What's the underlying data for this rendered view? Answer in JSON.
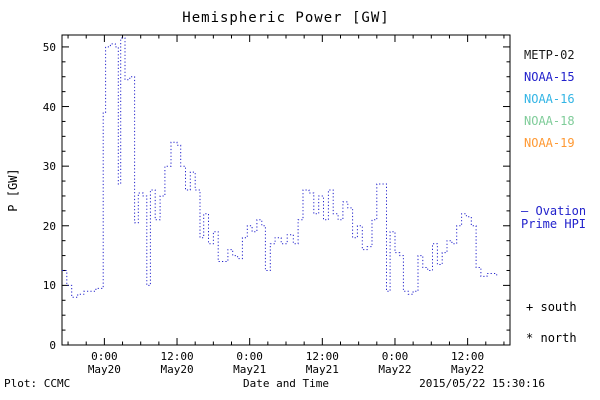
{
  "title": "Hemispheric Power [GW]",
  "footer": {
    "plot_credit": "Plot: CCMC",
    "xlabel": "Date and Time",
    "timestamp": "2015/05/22 15:30:16"
  },
  "legend": {
    "satellites": [
      {
        "label": "METP-02",
        "color": "#1a1a1a"
      },
      {
        "label": "NOAA-15",
        "color": "#2222cc"
      },
      {
        "label": "NOAA-16",
        "color": "#33b5e5"
      },
      {
        "label": "NOAA-18",
        "color": "#7fcc99"
      },
      {
        "label": "NOAA-19",
        "color": "#ff9933"
      }
    ],
    "ovation": {
      "symbol": "–",
      "line1": "Ovation",
      "line2": "Prime HPI",
      "color": "#2222cc"
    },
    "markers": [
      {
        "symbol": "+",
        "label": "south"
      },
      {
        "symbol": "*",
        "label": "north"
      }
    ]
  },
  "chart_data": {
    "type": "line",
    "style": "dotted-step",
    "title": "Hemispheric Power [GW]",
    "xlabel": "Date and Time",
    "ylabel": "P [GW]",
    "ylim": [
      0,
      52
    ],
    "y_ticks": [
      0,
      10,
      20,
      30,
      40,
      50
    ],
    "xlim": [
      0,
      74
    ],
    "x_unit": "hours, axis starting 2015 May 19 ~17:00 UT",
    "x_ticks": [
      {
        "pos": 7,
        "time": "0:00",
        "date": "May20"
      },
      {
        "pos": 19,
        "time": "12:00",
        "date": "May20"
      },
      {
        "pos": 31,
        "time": "0:00",
        "date": "May21"
      },
      {
        "pos": 43,
        "time": "12:00",
        "date": "May21"
      },
      {
        "pos": 55,
        "time": "0:00",
        "date": "May22"
      },
      {
        "pos": 67,
        "time": "12:00",
        "date": "May22"
      }
    ],
    "line_color": "#2222cc",
    "grid": false,
    "legend_position": "right",
    "series": [
      {
        "name": "Ovation Prime HPI",
        "points": [
          [
            0,
            12.5
          ],
          [
            0.8,
            10
          ],
          [
            1.6,
            8
          ],
          [
            2.6,
            8.5
          ],
          [
            3.6,
            9
          ],
          [
            4.6,
            9
          ],
          [
            5.6,
            9.5
          ],
          [
            6.3,
            9.5
          ],
          [
            6.8,
            39
          ],
          [
            7.2,
            50
          ],
          [
            8,
            50.5
          ],
          [
            8.8,
            50
          ],
          [
            9.3,
            27
          ],
          [
            9.7,
            51.5
          ],
          [
            10.4,
            44.5
          ],
          [
            11.2,
            45
          ],
          [
            12,
            20.5
          ],
          [
            12.6,
            25.5
          ],
          [
            13.4,
            25
          ],
          [
            14,
            10
          ],
          [
            14.6,
            26
          ],
          [
            15.4,
            21
          ],
          [
            16.2,
            25
          ],
          [
            17,
            30
          ],
          [
            18,
            34
          ],
          [
            19,
            33.5
          ],
          [
            19.6,
            30
          ],
          [
            20.4,
            26
          ],
          [
            21.2,
            29
          ],
          [
            22,
            26
          ],
          [
            22.8,
            18
          ],
          [
            23.4,
            22
          ],
          [
            24.2,
            17
          ],
          [
            25,
            19
          ],
          [
            25.8,
            14
          ],
          [
            26.6,
            14
          ],
          [
            27.4,
            16
          ],
          [
            28.2,
            15
          ],
          [
            29,
            14.5
          ],
          [
            29.8,
            18
          ],
          [
            30.6,
            20
          ],
          [
            31.4,
            19
          ],
          [
            32.2,
            21
          ],
          [
            33,
            20
          ],
          [
            33.6,
            12.5
          ],
          [
            34.4,
            17
          ],
          [
            35.2,
            18
          ],
          [
            36.2,
            17
          ],
          [
            37.2,
            18.5
          ],
          [
            38.2,
            17
          ],
          [
            39,
            21
          ],
          [
            39.8,
            26
          ],
          [
            40.8,
            25.5
          ],
          [
            41.6,
            22
          ],
          [
            42.4,
            25
          ],
          [
            43.2,
            21
          ],
          [
            44,
            26
          ],
          [
            44.8,
            22
          ],
          [
            45.6,
            21
          ],
          [
            46.4,
            24
          ],
          [
            47.2,
            23
          ],
          [
            48,
            18
          ],
          [
            48.8,
            20
          ],
          [
            49.6,
            16
          ],
          [
            50.4,
            16.5
          ],
          [
            51.2,
            21
          ],
          [
            52,
            27
          ],
          [
            53,
            27
          ],
          [
            53.6,
            9
          ],
          [
            54.2,
            19
          ],
          [
            55,
            15.5
          ],
          [
            55.8,
            15
          ],
          [
            56.4,
            9
          ],
          [
            57.2,
            8.5
          ],
          [
            58,
            9
          ],
          [
            58.8,
            15
          ],
          [
            59.6,
            13
          ],
          [
            60.4,
            12.5
          ],
          [
            61.2,
            17
          ],
          [
            62,
            13.5
          ],
          [
            62.8,
            15.5
          ],
          [
            63.6,
            17.5
          ],
          [
            64.4,
            17
          ],
          [
            65.2,
            20
          ],
          [
            66,
            22
          ],
          [
            66.8,
            21.5
          ],
          [
            67.6,
            20
          ],
          [
            68.4,
            13
          ],
          [
            69.2,
            11.5
          ],
          [
            70.2,
            12
          ],
          [
            71.8,
            11.5
          ]
        ]
      }
    ]
  }
}
